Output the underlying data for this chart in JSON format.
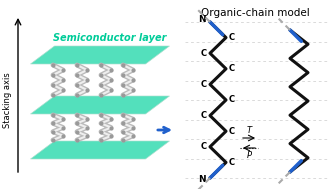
{
  "title": "Organic-chain model",
  "left_title": "Semiconductor layer",
  "stacking_label": "Stacking axis",
  "background_color": "#ffffff",
  "teal_layer_color": "#40ddb5",
  "chain_color": "#222222",
  "blue_bar_color": "#2060cc",
  "gray_dashed_color": "#aaaaaa",
  "arrow_color": "#2060cc",
  "T_label": "T",
  "P_label": "P",
  "N_label": "N",
  "C_label": "C"
}
